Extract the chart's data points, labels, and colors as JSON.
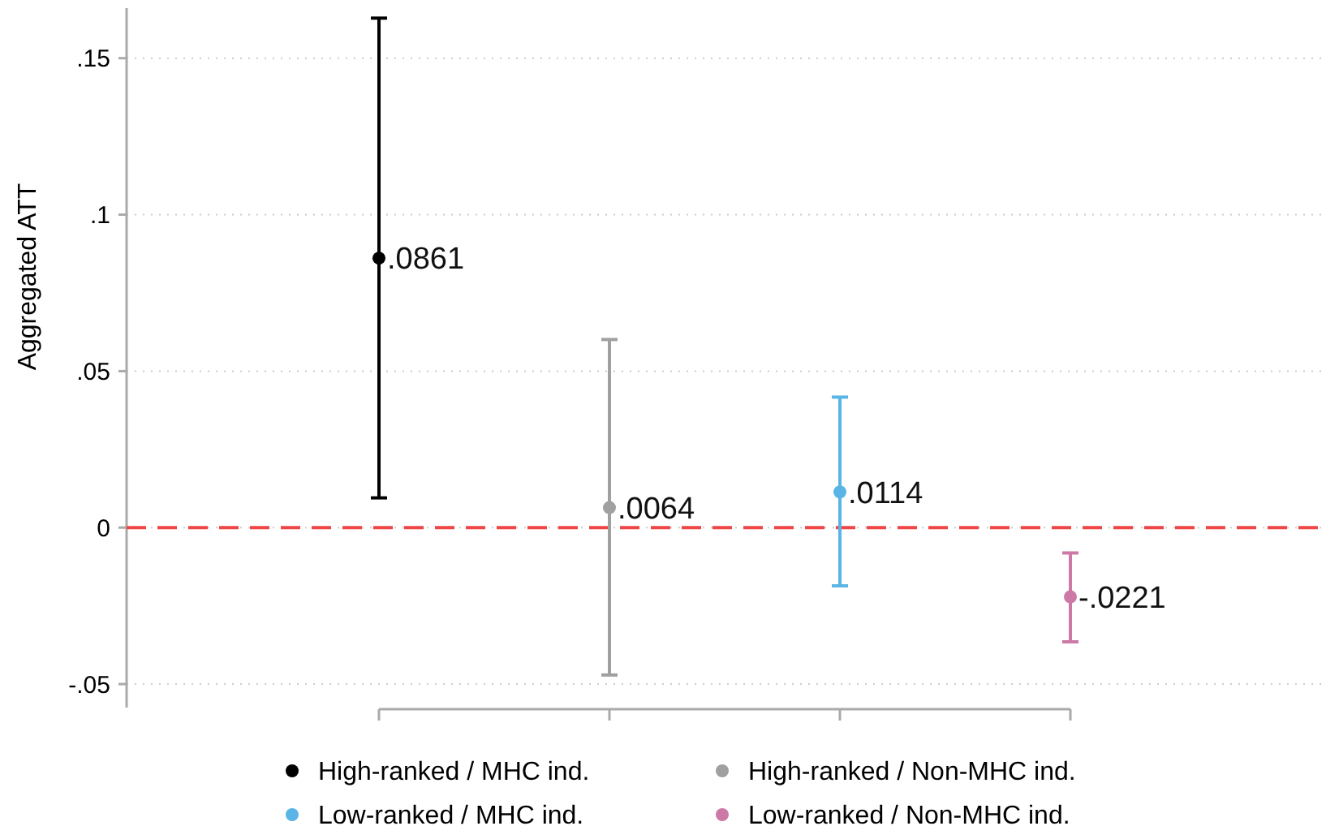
{
  "chart_data": {
    "type": "scatter",
    "ylabel": "Aggregated ATT",
    "categories": [
      null,
      null,
      null,
      null
    ],
    "ylim": [
      -0.0575,
      0.166
    ],
    "yticks": [
      {
        "value": -0.05,
        "label": "-.05"
      },
      0,
      {
        "value": 0.05,
        "label": ".05"
      },
      {
        "value": 0.1,
        "label": ".1"
      },
      {
        "value": 0.15,
        "label": ".15"
      }
    ],
    "grid": "y",
    "legend": "bottom",
    "marker": "circle",
    "ref_lines": [
      {
        "axis": "y",
        "value": 0,
        "color": "#f04545",
        "line_style": "dashed"
      }
    ],
    "series": [
      {
        "name": "High-ranked / MHC ind.",
        "color": "#000000",
        "values": [
          0.0861,
          null,
          null,
          null
        ],
        "errors": [
          [
            0.0095,
            0.1628
          ],
          null,
          null,
          null
        ],
        "value_labels": [
          ".0861",
          null,
          null,
          null
        ]
      },
      {
        "name": "High-ranked / Non-MHC ind.",
        "color": "#a0a0a0",
        "values": [
          null,
          0.0064,
          null,
          null
        ],
        "errors": [
          null,
          [
            -0.0471,
            0.0601
          ],
          null,
          null
        ],
        "value_labels": [
          null,
          ".0064",
          null,
          null
        ]
      },
      {
        "name": "Low-ranked / MHC ind.",
        "color": "#5ab4e5",
        "values": [
          null,
          null,
          0.0114,
          null
        ],
        "errors": [
          null,
          null,
          [
            -0.0186,
            0.0417
          ],
          null
        ],
        "value_labels": [
          null,
          null,
          ".0114",
          null
        ]
      },
      {
        "name": "Low-ranked / Non-MHC ind.",
        "color": "#cc79a7",
        "values": [
          null,
          null,
          null,
          -0.0221
        ],
        "errors": [
          null,
          null,
          null,
          [
            -0.0365,
            -0.0081
          ]
        ],
        "value_labels": [
          null,
          null,
          null,
          "-.0221"
        ]
      }
    ]
  }
}
